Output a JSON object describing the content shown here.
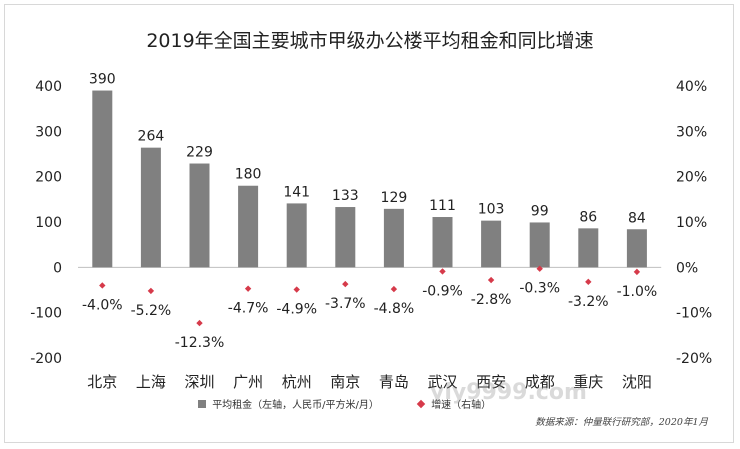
{
  "chart_data": {
    "type": "bar",
    "title": "2019年全国主要城市甲级办公楼平均租金和同比增速",
    "categories": [
      "北京",
      "上海",
      "深圳",
      "广州",
      "杭州",
      "南京",
      "青岛",
      "武汉",
      "西安",
      "成都",
      "重庆",
      "沈阳"
    ],
    "series": [
      {
        "name": "平均租金（左轴，人民币/平方米/月）",
        "type": "bar",
        "axis": "left",
        "color": "#808080",
        "values": [
          390,
          264,
          229,
          180,
          141,
          133,
          129,
          111,
          103,
          99,
          86,
          84
        ],
        "labels": [
          "390",
          "264",
          "229",
          "180",
          "141",
          "133",
          "129",
          "111",
          "103",
          "99",
          "86",
          "84"
        ]
      },
      {
        "name": "增速（右轴）",
        "type": "scatter",
        "axis": "right",
        "color": "#d63a4a",
        "marker": "diamond",
        "values": [
          -4.0,
          -5.2,
          -12.3,
          -4.7,
          -4.9,
          -3.7,
          -4.8,
          -0.9,
          -2.8,
          -0.3,
          -3.2,
          -1.0
        ],
        "labels": [
          "-4.0%",
          "-5.2%",
          "-12.3%",
          "-4.7%",
          "-4.9%",
          "-3.7%",
          "-4.8%",
          "-0.9%",
          "-2.8%",
          "-0.3%",
          "-3.2%",
          "-1.0%"
        ]
      }
    ],
    "y_left": {
      "min": -200,
      "max": 400,
      "ticks": [
        400,
        300,
        200,
        100,
        0,
        -100,
        -200
      ]
    },
    "y_right": {
      "min": -20,
      "max": 40,
      "ticks": [
        "40%",
        "30%",
        "20%",
        "10%",
        "0%",
        "-10%",
        "-20%"
      ]
    },
    "grid": false,
    "legend_position": "bottom"
  },
  "source_note": "数据来源：仲量联行研究部，2020年1月",
  "watermark": "yly9999.com"
}
